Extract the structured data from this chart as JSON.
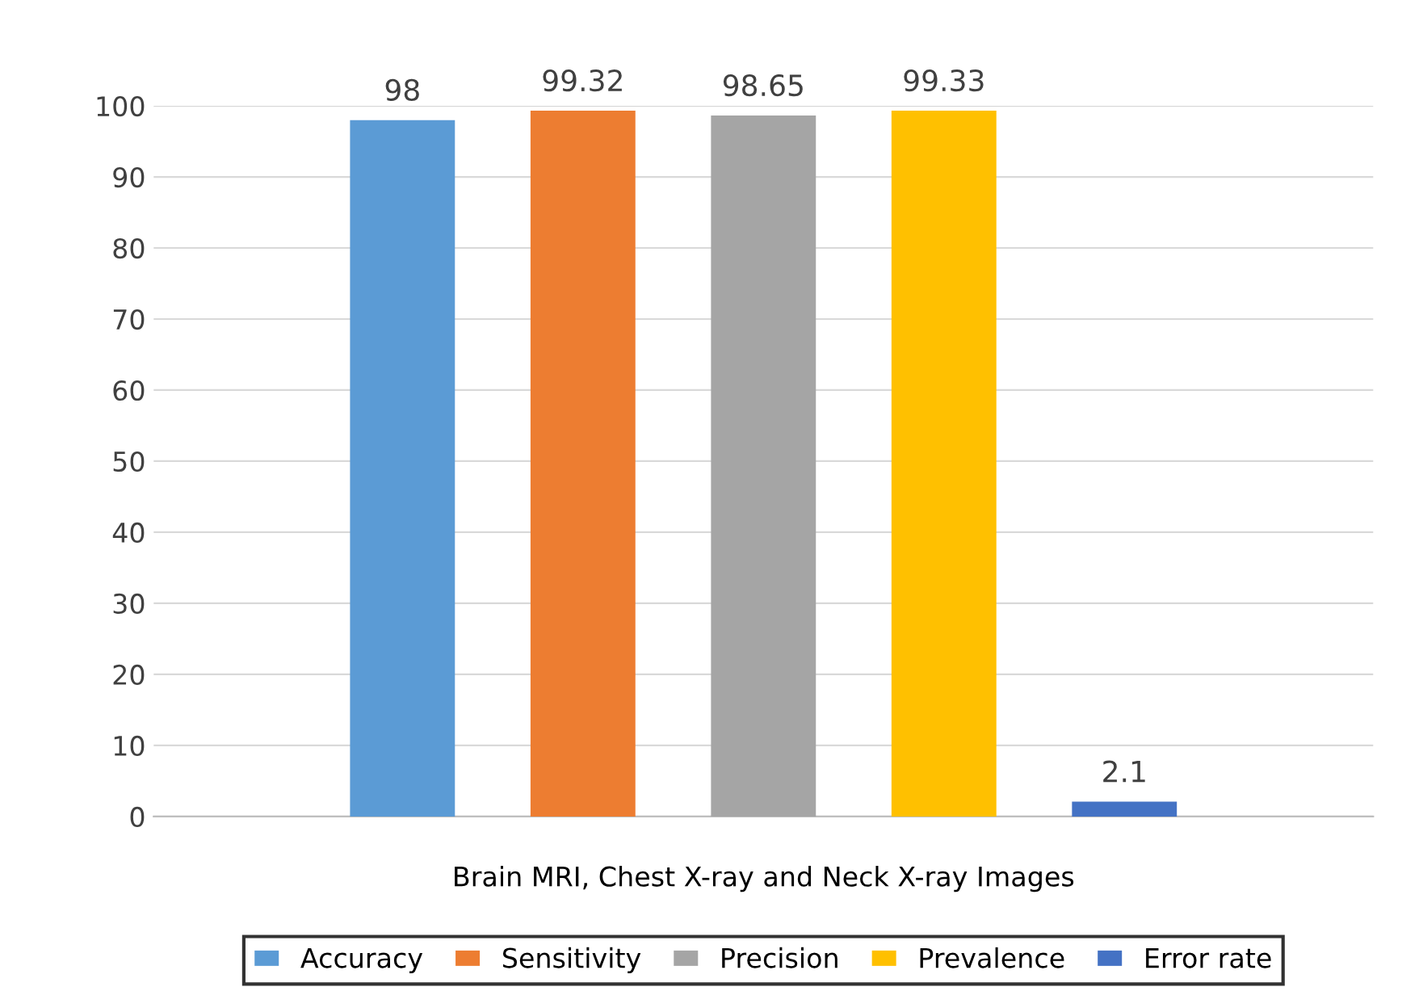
{
  "chart_data": {
    "type": "bar",
    "categories": [
      "Brain MRI, Chest X-ray and Neck X-ray Images"
    ],
    "series": [
      {
        "name": "Accuracy",
        "color": "#5b9bd5",
        "values": [
          98
        ]
      },
      {
        "name": "Sensitivity",
        "color": "#ed7d31",
        "values": [
          99.32
        ]
      },
      {
        "name": "Precision",
        "color": "#a5a5a5",
        "values": [
          98.65
        ]
      },
      {
        "name": "Prevalence",
        "color": "#ffc000",
        "values": [
          99.33
        ]
      },
      {
        "name": "Error rate",
        "color": "#4472c4",
        "values": [
          2.1
        ]
      }
    ],
    "ylim": [
      0,
      100
    ],
    "yticks": [
      0,
      10,
      20,
      30,
      40,
      50,
      60,
      70,
      80,
      90,
      100
    ],
    "grid": "y",
    "data_labels": true,
    "legend": "bottom"
  }
}
